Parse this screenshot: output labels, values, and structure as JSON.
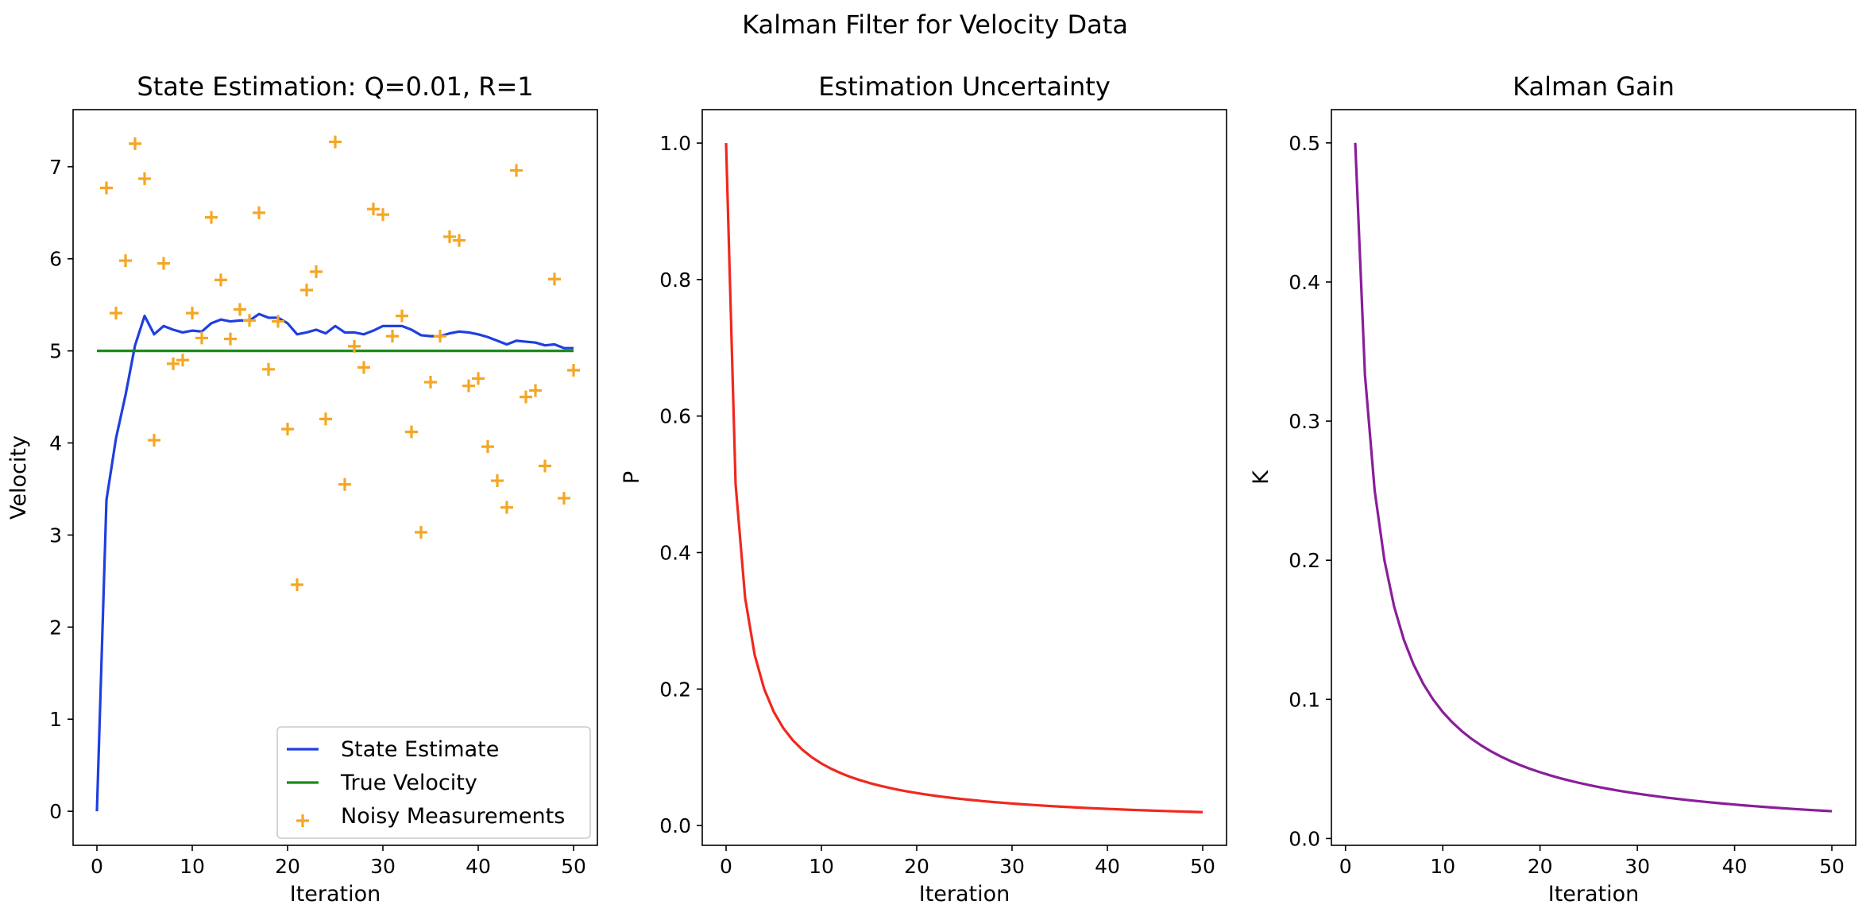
{
  "figure": {
    "suptitle": "Kalman Filter for Velocity Data"
  },
  "chart_data": [
    {
      "type": "line",
      "title": "State Estimation: Q=0.01, R=1",
      "xlabel": "Iteration",
      "ylabel": "Velocity",
      "xlim": [
        -2.5,
        52.5
      ],
      "ylim": [
        -0.37,
        7.62
      ],
      "xticks": [
        0,
        10,
        20,
        30,
        40,
        50
      ],
      "yticks": [
        0,
        1,
        2,
        3,
        4,
        5,
        6,
        7
      ],
      "grid": false,
      "legend_position": "lower right",
      "series": [
        {
          "name": "State Estimate",
          "kind": "line",
          "color": "#1f3fe0",
          "x": [
            0,
            1,
            2,
            3,
            4,
            5,
            6,
            7,
            8,
            9,
            10,
            11,
            12,
            13,
            14,
            15,
            16,
            17,
            18,
            19,
            20,
            21,
            22,
            23,
            24,
            25,
            26,
            27,
            28,
            29,
            30,
            31,
            32,
            33,
            34,
            35,
            36,
            37,
            38,
            39,
            40,
            41,
            42,
            43,
            44,
            45,
            46,
            47,
            48,
            49,
            50
          ],
          "y": [
            0,
            3.38,
            4.05,
            4.52,
            5.06,
            5.38,
            5.18,
            5.27,
            5.23,
            5.2,
            5.22,
            5.21,
            5.3,
            5.34,
            5.32,
            5.33,
            5.33,
            5.4,
            5.36,
            5.36,
            5.3,
            5.18,
            5.2,
            5.23,
            5.19,
            5.27,
            5.2,
            5.2,
            5.18,
            5.22,
            5.27,
            5.27,
            5.27,
            5.23,
            5.17,
            5.16,
            5.16,
            5.19,
            5.21,
            5.2,
            5.18,
            5.15,
            5.11,
            5.07,
            5.11,
            5.1,
            5.09,
            5.06,
            5.07,
            5.03,
            5.03
          ]
        },
        {
          "name": "True Velocity",
          "kind": "line",
          "color": "#1a8a1a",
          "x": [
            0,
            50
          ],
          "y": [
            5,
            5
          ]
        },
        {
          "name": "Noisy Measurements",
          "kind": "scatter",
          "marker": "+",
          "color": "#f5a623",
          "x": [
            1,
            2,
            3,
            4,
            5,
            6,
            7,
            8,
            9,
            10,
            11,
            12,
            13,
            14,
            15,
            16,
            17,
            18,
            19,
            20,
            21,
            22,
            23,
            24,
            25,
            26,
            27,
            28,
            29,
            30,
            31,
            32,
            33,
            34,
            35,
            36,
            37,
            38,
            39,
            40,
            41,
            42,
            43,
            44,
            45,
            46,
            47,
            48,
            49,
            50
          ],
          "y": [
            6.77,
            5.41,
            5.98,
            7.25,
            6.87,
            4.03,
            5.95,
            4.86,
            4.9,
            5.41,
            5.14,
            6.45,
            5.77,
            5.13,
            5.45,
            5.33,
            6.5,
            4.8,
            5.32,
            4.15,
            2.46,
            5.66,
            5.86,
            4.26,
            7.27,
            3.55,
            5.05,
            4.82,
            6.54,
            6.48,
            5.16,
            5.38,
            4.12,
            3.03,
            4.66,
            5.16,
            6.24,
            6.2,
            4.62,
            4.7,
            3.96,
            3.59,
            3.3,
            6.96,
            4.5,
            4.57,
            3.75,
            5.78,
            3.4,
            4.79
          ]
        }
      ]
    },
    {
      "type": "line",
      "title": "Estimation Uncertainty",
      "xlabel": "Iteration",
      "ylabel": "P",
      "xlim": [
        -2.5,
        52.5
      ],
      "ylim": [
        -0.029,
        1.049
      ],
      "xticks": [
        0,
        10,
        20,
        30,
        40,
        50
      ],
      "yticks": [
        0.0,
        0.2,
        0.4,
        0.6,
        0.8,
        1.0
      ],
      "ytick_labels": [
        "0.0",
        "0.2",
        "0.4",
        "0.6",
        "0.8",
        "1.0"
      ],
      "grid": false,
      "series": [
        {
          "kind": "line",
          "color": "#f0281e",
          "formula": "P_k = 1/(k+1)",
          "x_range": [
            0,
            50
          ]
        }
      ]
    },
    {
      "type": "line",
      "title": "Kalman Gain",
      "xlabel": "Iteration",
      "ylabel": "K",
      "xlim": [
        -1.45,
        52.45
      ],
      "ylim": [
        -0.0049,
        0.5239
      ],
      "xticks": [
        0,
        10,
        20,
        30,
        40,
        50
      ],
      "yticks": [
        0.0,
        0.1,
        0.2,
        0.3,
        0.4,
        0.5
      ],
      "ytick_labels": [
        "0.0",
        "0.1",
        "0.2",
        "0.3",
        "0.4",
        "0.5"
      ],
      "grid": false,
      "series": [
        {
          "kind": "line",
          "color": "#8a1e9a",
          "formula": "K_k = 1/(k+1)",
          "x_range": [
            1,
            50
          ]
        }
      ]
    }
  ]
}
